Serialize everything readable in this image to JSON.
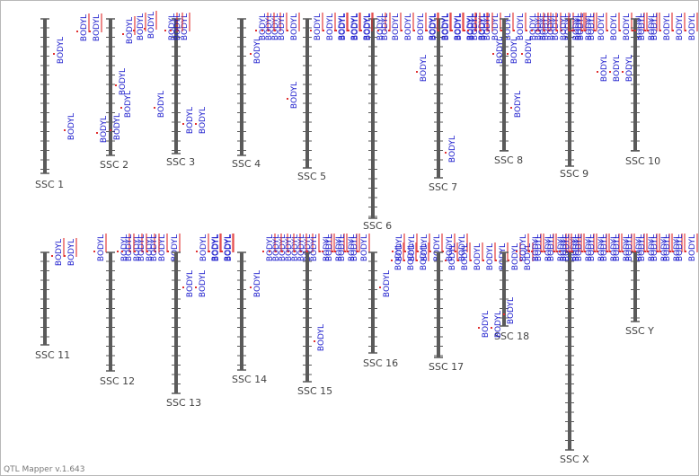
{
  "app": {
    "version_label": "QTL Mapper v.1.643"
  },
  "colors": {
    "chromosome": "#5a5a5a",
    "tick": "#5a5a5a",
    "qtl_text": "#1a1acc",
    "qtl_bar": "#e03030",
    "label": "#444444"
  },
  "trait_label": "BODYL",
  "chromosomes": [
    {
      "name": "SSC 1",
      "qtls": [
        "BODYL",
        "BODYL",
        "BODYL",
        "BODYL",
        "BODYL"
      ]
    },
    {
      "name": "SSC 2",
      "qtls": [
        "BODYL",
        "BODYL",
        "BODYL",
        "BODYL",
        "BODYL",
        "BODYL"
      ]
    },
    {
      "name": "SSC 3",
      "qtls": [
        "BODYL",
        "BODYL",
        "BODYL",
        "BODYL",
        "BODYL",
        "BODYL"
      ]
    },
    {
      "name": "SSC 4",
      "qtls": [
        "BODYL",
        "BODYL",
        "BODYL"
      ]
    },
    {
      "name": "SSC 5",
      "qtls": [
        "BODYL",
        "BODYL",
        "BODYL",
        "BODYL",
        "BODYL",
        "BODYL",
        "BODYL",
        "BODYL",
        "BODYL",
        "BODYL"
      ]
    },
    {
      "name": "SSC 6",
      "qtls": [
        "BODYL",
        "BODYL",
        "BODYL",
        "BODYL",
        "BODYL",
        "BODYL",
        "BODYL",
        "BODYL",
        "BODYL",
        "BODYL",
        "BODYL",
        "BODYL"
      ]
    },
    {
      "name": "SSC 7",
      "qtls": [
        "BODYL",
        "BODYL",
        "BODYL",
        "BODYL",
        "BODYL",
        "BODYL",
        "BODYL",
        "BODYL",
        "BODYL",
        "BODYL",
        "BODYL",
        "BODYL"
      ]
    },
    {
      "name": "SSC 8",
      "qtls": [
        "BODYL",
        "BODYL",
        "BODYL",
        "BODYL",
        "BODYL",
        "BODYL",
        "BODYL",
        "BODYL",
        "BODYL",
        "BODYL"
      ]
    },
    {
      "name": "SSC 9",
      "qtls": [
        "BODYL",
        "BODYL",
        "BODYL",
        "BODYL",
        "BODYL",
        "BODYL",
        "BODYL",
        "BODYL",
        "BODYL",
        "BODYL"
      ]
    },
    {
      "name": "SSC 10",
      "qtls": [
        "BODYL",
        "BODYL",
        "BODYL",
        "BODYL",
        "BODYL",
        "BODYL",
        "BODYL",
        "BODYL",
        "BODYL",
        "BODYL",
        "BODYL",
        "BODYL"
      ]
    },
    {
      "name": "SSC 11",
      "qtls": [
        "BODYL",
        "BODYL"
      ]
    },
    {
      "name": "SSC 12",
      "qtls": [
        "BODYL",
        "BODYL",
        "BODYL",
        "BODYL",
        "BODYL",
        "BODYL"
      ]
    },
    {
      "name": "SSC 13",
      "qtls": [
        "BODYL",
        "BODYL",
        "BODYL",
        "BODYL",
        "BODYL",
        "BODYL",
        "BODYL"
      ]
    },
    {
      "name": "SSC 14",
      "qtls": [
        "BODYL",
        "BODYL",
        "BODYL",
        "BODYL",
        "BODYL",
        "BODYL",
        "BODYL",
        "BODYL"
      ]
    },
    {
      "name": "SSC 15",
      "qtls": [
        "BODYL",
        "BODYL",
        "BODYL",
        "BODYL",
        "BODYL",
        "BODYL",
        "BODYL",
        "BODYL",
        "BODYL"
      ]
    },
    {
      "name": "SSC 16",
      "qtls": [
        "BODYL",
        "BODYL",
        "BODYL",
        "BODYL",
        "BODYL",
        "BODYL",
        "BODYL",
        "BODYL",
        "BODYL",
        "BODYL"
      ]
    },
    {
      "name": "SSC 17",
      "qtls": [
        "BODYL",
        "BODYL",
        "BODYL",
        "BODYL",
        "BODYL",
        "BODYL",
        "BODYL",
        "BODYL",
        "BODYL",
        "BODYL"
      ]
    },
    {
      "name": "SSC 18",
      "qtls": [
        "BODYL",
        "BODYL",
        "BODYL",
        "BODYL",
        "BODYL",
        "BODYL",
        "BODYL",
        "BODYL"
      ]
    },
    {
      "name": "SSC X",
      "qtls": [
        "BODYL",
        "BODYL",
        "BODYL",
        "BODYL",
        "BODYL",
        "BODYL",
        "BODYL",
        "BODYL",
        "BODYL",
        "BODYL",
        "BODYL",
        "BODYL"
      ]
    },
    {
      "name": "SSC Y",
      "qtls": [
        "BODYL",
        "BODYL",
        "BODYL",
        "BODYL",
        "BODYL",
        "BODYL",
        "BODYL",
        "BODYL",
        "BODYL",
        "BODYL",
        "BODYL",
        "BODYL"
      ]
    }
  ]
}
